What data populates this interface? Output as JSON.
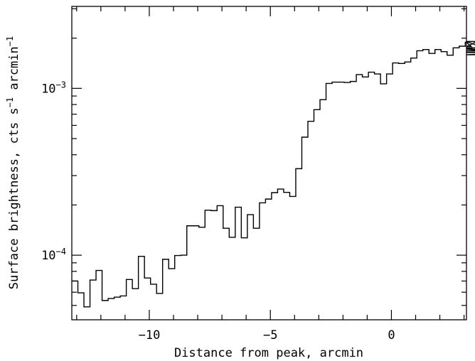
{
  "chart_data": {
    "type": "line",
    "step": true,
    "xlabel": "Distance from peak, arcmin",
    "ylabel_main": "Surface brightness, cts s",
    "ylabel_sup1": "−1",
    "ylabel_mid": " arcmin",
    "ylabel_sup2": "−1",
    "xlim": [
      -13.2,
      3.1
    ],
    "ylim": [
      4.1e-05,
      0.0031
    ],
    "yscale": "log",
    "xticks": [
      {
        "value": -10,
        "label": "−10"
      },
      {
        "value": -5,
        "label": "−5"
      },
      {
        "value": 0,
        "label": "0"
      }
    ],
    "yticks": [
      {
        "value": 0.0001,
        "base": "10",
        "exp": "−4"
      },
      {
        "value": 0.001,
        "base": "10",
        "exp": "−3"
      }
    ],
    "bin_width": 0.25,
    "bin_start": -13.2,
    "values": [
      7e-05,
      5.95e-05,
      4.9e-05,
      7.1e-05,
      8.1e-05,
      5.35e-05,
      5.5e-05,
      5.6e-05,
      5.7e-05,
      7.15e-05,
      6.3e-05,
      9.85e-05,
      7.3e-05,
      6.7e-05,
      5.9e-05,
      9.45e-05,
      8.3e-05,
      9.95e-05,
      0.0001,
      0.00015,
      0.00015,
      0.000147,
      0.000186,
      0.000185,
      0.000198,
      0.000145,
      0.000128,
      0.000194,
      0.000127,
      0.000175,
      0.000145,
      0.000206,
      0.000217,
      0.000237,
      0.000249,
      0.000238,
      0.000225,
      0.00033,
      0.00051,
      0.000635,
      0.000745,
      0.000855,
      0.00107,
      0.00109,
      0.00109,
      0.001085,
      0.0011,
      0.00121,
      0.00117,
      0.00125,
      0.00122,
      0.001065,
      0.00122,
      0.00142,
      0.00141,
      0.00144,
      0.00152,
      0.00168,
      0.00171,
      0.00162,
      0.00171,
      0.00166,
      0.00158,
      0.00175,
      0.00179,
      0.00189,
      0.00178,
      0.00191,
      0.00175,
      0.00164,
      0.00168,
      0.00172,
      0.00165,
      0.00159,
      0.00165
    ]
  }
}
